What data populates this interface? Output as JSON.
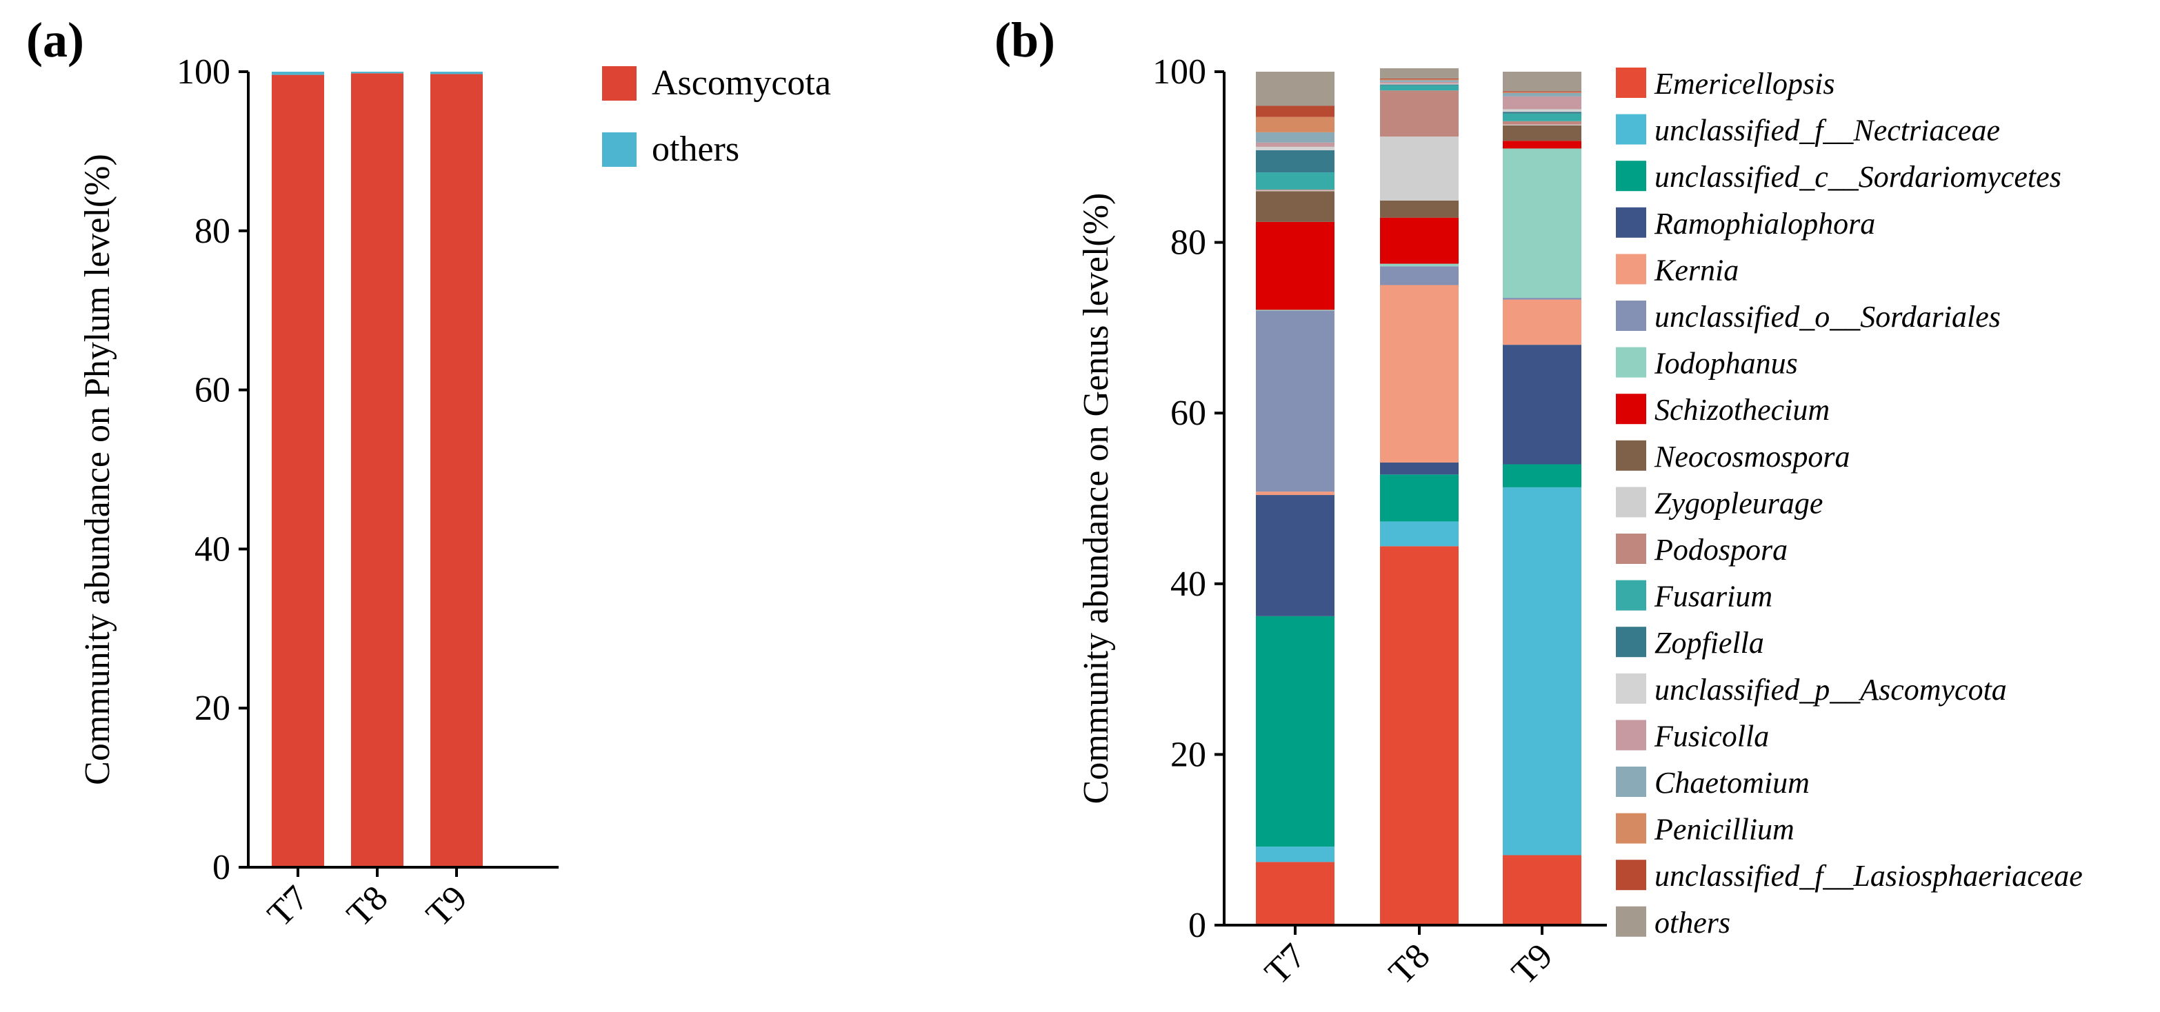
{
  "chart_data": [
    {
      "type": "bar",
      "stacked": true,
      "panel_label": "(a)",
      "title": "",
      "xlabel": "",
      "ylabel": "Community abundance on Phylum level(%)",
      "ylim": [
        0,
        100
      ],
      "yticks": [
        0,
        20,
        40,
        60,
        80,
        100
      ],
      "categories": [
        "T7",
        "T8",
        "T9"
      ],
      "series": [
        {
          "name": "Ascomycota",
          "color": "#DE4433",
          "values": [
            99.6,
            99.8,
            99.7
          ]
        },
        {
          "name": "others",
          "color": "#4DB5D0",
          "values": [
            0.4,
            0.2,
            0.3
          ]
        }
      ],
      "legend_position": "top-right",
      "legend_italic": false
    },
    {
      "type": "bar",
      "stacked": true,
      "panel_label": "(b)",
      "title": "",
      "xlabel": "",
      "ylabel": "Community abundance on Genus level(%)",
      "ylim": [
        0,
        100
      ],
      "yticks": [
        0,
        20,
        40,
        60,
        80,
        100
      ],
      "categories": [
        "T7",
        "T8",
        "T9"
      ],
      "series": [
        {
          "name": "Emericellopsis",
          "color": "#E64B35",
          "values": [
            7.4,
            44.4,
            8.2
          ]
        },
        {
          "name": "unclassified_f__Nectriaceae",
          "color": "#4DBBD5",
          "values": [
            1.8,
            2.9,
            43.1
          ]
        },
        {
          "name": "unclassified_c__Sordariomycetes",
          "color": "#00A087",
          "values": [
            27.0,
            5.5,
            2.7
          ]
        },
        {
          "name": "Ramophialophora",
          "color": "#3C5488",
          "values": [
            14.2,
            1.4,
            14.0
          ]
        },
        {
          "name": "Kernia",
          "color": "#F39B7F",
          "values": [
            0.4,
            20.8,
            5.3
          ]
        },
        {
          "name": "unclassified_o__Sordariales",
          "color": "#8491B4",
          "values": [
            21.2,
            2.2,
            0.2
          ]
        },
        {
          "name": "Iodophanus",
          "color": "#91D1C2",
          "values": [
            0.1,
            0.3,
            17.5
          ]
        },
        {
          "name": "Schizothecium",
          "color": "#DC0000",
          "values": [
            10.3,
            5.4,
            0.9
          ]
        },
        {
          "name": "Neocosmospora",
          "color": "#7E6148",
          "values": [
            3.6,
            2.0,
            1.8
          ]
        },
        {
          "name": "Zygopleurage",
          "color": "#CFCFCF",
          "values": [
            0.1,
            7.5,
            0.1
          ]
        },
        {
          "name": "Podospora",
          "color": "#C0877F",
          "values": [
            0.1,
            5.4,
            0.4
          ]
        },
        {
          "name": "Fusarium",
          "color": "#36ABA8",
          "values": [
            2.0,
            0.6,
            0.9
          ]
        },
        {
          "name": "Zopfiella",
          "color": "#367A8C",
          "values": [
            2.6,
            0.1,
            0.2
          ]
        },
        {
          "name": "unclassified_p__Ascomycota",
          "color": "#D3D3D3",
          "values": [
            0.4,
            0.1,
            0.3
          ]
        },
        {
          "name": "Fusicolla",
          "color": "#C79AA2",
          "values": [
            0.5,
            0.2,
            1.5
          ]
        },
        {
          "name": "Chaetomium",
          "color": "#8BAAB8",
          "values": [
            1.2,
            0.2,
            0.4
          ]
        },
        {
          "name": "Penicillium",
          "color": "#D58A61",
          "values": [
            1.8,
            0.1,
            0.1
          ]
        },
        {
          "name": "unclassified_f__Lasiosphaeriaceae",
          "color": "#B94A32",
          "values": [
            1.3,
            0.1,
            0.1
          ]
        },
        {
          "name": "others",
          "color": "#A59A8E",
          "values": [
            4.0,
            1.2,
            2.3
          ]
        }
      ],
      "legend_position": "right",
      "legend_italic": true
    }
  ]
}
